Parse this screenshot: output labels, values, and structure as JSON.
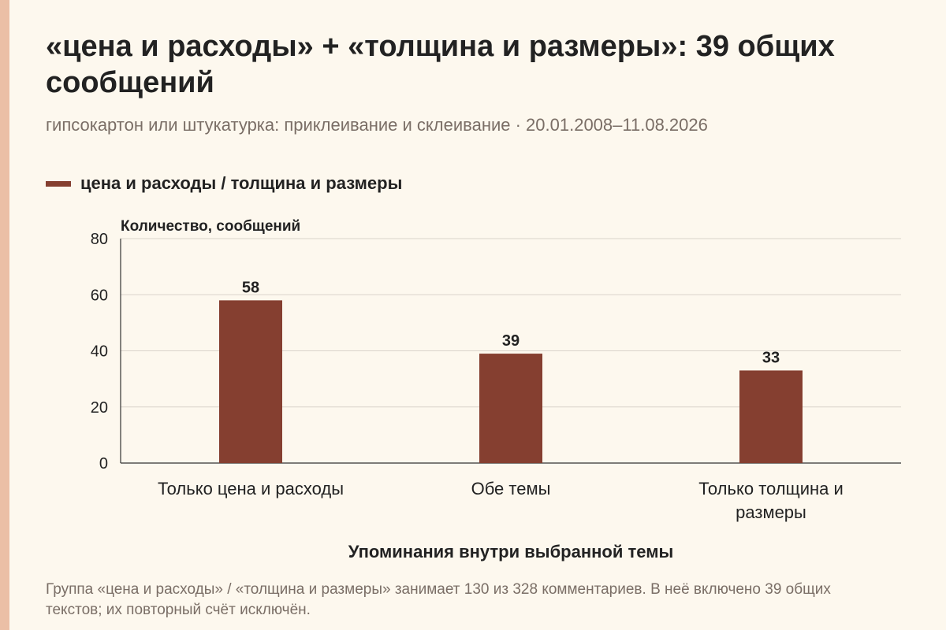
{
  "title": "«цена и расходы» + «толщина и размеры»: 39 общих сообщений",
  "subtitle": "гипсокартон или штукатурка: приклеивание и склеивание · 20.01.2008–11.08.2026",
  "legend": {
    "label": "цена и расходы / толщина и размеры",
    "color": "#853f30"
  },
  "footnote": "Группа «цена и расходы» / «толщина и размеры» занимает 130 из 328 комментариев. В неё включено 39 общих текстов; их повторный счёт исключён.",
  "chart_data": {
    "type": "bar",
    "categories": [
      [
        "Только цена и расходы"
      ],
      [
        "Обе темы"
      ],
      [
        "Только толщина и",
        "размеры"
      ]
    ],
    "series": [
      {
        "name": "цена и расходы / толщина и размеры",
        "values": [
          58,
          39,
          33
        ],
        "color": "#853f30"
      }
    ],
    "ylabel": "Количество, сообщений",
    "xlabel": "Упоминания внутри выбранной темы",
    "ylim": [
      0,
      80
    ],
    "yticks": [
      0,
      20,
      40,
      60,
      80
    ],
    "grid": true,
    "legend_position": "top-left"
  }
}
